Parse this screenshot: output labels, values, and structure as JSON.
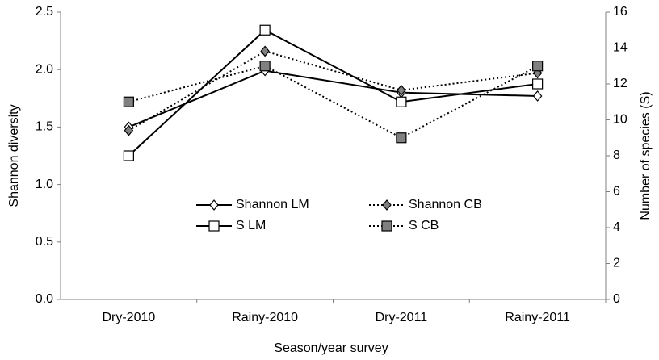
{
  "chart_data": {
    "type": "line",
    "x_label": "Season/year survey",
    "y_label": "Shannon diversity",
    "y2_label": "Number of species (S)",
    "categories": [
      "Dry-2010",
      "Rainy-2010",
      "Dry-2011",
      "Rainy-2011"
    ],
    "ylim": [
      0,
      2.5
    ],
    "yticks": [
      {
        "value": 0,
        "label": "0.0"
      },
      {
        "value": 0.5,
        "label": "0.5"
      },
      {
        "value": 1,
        "label": "1.0"
      },
      {
        "value": 1.5,
        "label": "1.5"
      },
      {
        "value": 2,
        "label": "2.0"
      },
      {
        "value": 2.5,
        "label": "2.5"
      }
    ],
    "y2lim": [
      0,
      16
    ],
    "y2ticks": [
      0,
      2,
      4,
      6,
      8,
      10,
      12,
      14,
      16
    ],
    "legend": "center",
    "series": [
      {
        "name": "Shannon LM",
        "color": "#000000",
        "marker": "diamond",
        "marker_fill": "#ffffff",
        "dash": "solid",
        "values": [
          1.5,
          1.99,
          1.8,
          1.77
        ]
      },
      {
        "name": "Shannon CB",
        "color": "#000000",
        "marker": "diamond",
        "marker_fill": "#808080",
        "dash": "dotted",
        "values": [
          1.47,
          2.16,
          1.82,
          1.97
        ]
      },
      {
        "name": "S LM",
        "color": "#000000",
        "marker": "square",
        "marker_fill": "#ffffff",
        "dash": "solid",
        "axis": "y2",
        "values": [
          8,
          15,
          11,
          12
        ]
      },
      {
        "name": "S CB",
        "color": "#000000",
        "marker": "square",
        "marker_fill": "#808080",
        "dash": "dotted",
        "axis": "y2",
        "values": [
          11,
          13,
          9,
          13
        ]
      }
    ]
  }
}
